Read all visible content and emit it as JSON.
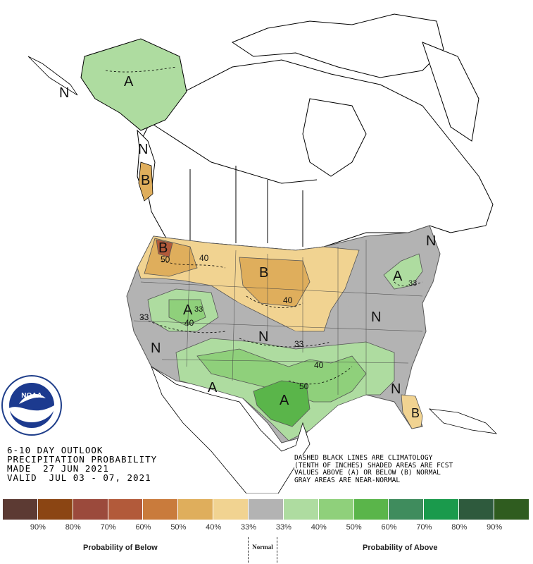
{
  "title_lines": [
    "6-10 DAY OUTLOOK",
    "PRECIPITATION PROBABILITY",
    "MADE  27 JUN 2021",
    "VALID  JUL 03 - 07, 2021"
  ],
  "note_lines": [
    "DASHED BLACK LINES ARE CLIMATOLOGY",
    "(TENTH OF INCHES) SHADED AREAS ARE FCST",
    "VALUES ABOVE (A) OR BELOW (B) NORMAL",
    "GRAY AREAS ARE NEAR-NORMAL"
  ],
  "logo_text": "NOAA",
  "map_labels": {
    "alaska_A": "A",
    "alaska_N": "N",
    "panhandle_N": "N",
    "panhandle_B": "B",
    "nw_B": "B",
    "nw_50": "50",
    "nw_40": "40",
    "plains_B": "B",
    "plains_40": "40",
    "great_basin_A": "A",
    "gb_40": "40",
    "gb_33": "33",
    "w33": "33",
    "sw_N": "N",
    "central_N": "N",
    "central_33": "33",
    "se_40": "40",
    "sw_A": "A",
    "tx_A": "A",
    "tx_50": "50",
    "east_N": "N",
    "ne_A": "A",
    "ne_33": "33",
    "ne_N": "N",
    "fl_N": "N",
    "fl_B": "B"
  },
  "legend": {
    "colors": [
      "#5c3a33",
      "#8b4513",
      "#9b4a3c",
      "#b25a3a",
      "#c97b3c",
      "#dfae5c",
      "#f1d391",
      "#b3b3b3",
      "#aedca0",
      "#8fd07b",
      "#5ab54a",
      "#3f8c5d",
      "#1a9a4c",
      "#2e5a3d",
      "#2f5c1f"
    ],
    "ticks": [
      "90%",
      "80%",
      "70%",
      "60%",
      "50%",
      "40%",
      "33%",
      "33%",
      "40%",
      "50%",
      "60%",
      "70%",
      "80%",
      "90%"
    ],
    "below_label": "Probability of Below",
    "normal_label": "Normal",
    "above_label": "Probability of Above"
  }
}
